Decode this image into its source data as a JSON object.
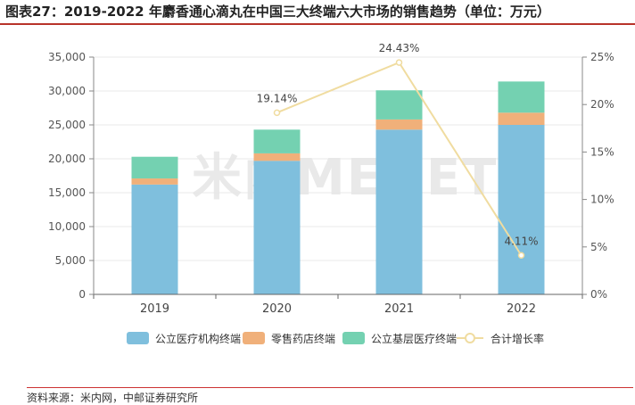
{
  "title": "图表27：2019-2022 年麝香通心滴丸在中国三大终端六大市场的销售趋势（单位：万元）",
  "source": "资料来源：米内网，中邮证券研究所",
  "watermark": "米内MENET",
  "colors": {
    "title_rule": "#b8332a",
    "public_hospital": "#7fbfdd",
    "retail_pharmacy": "#f0b07a",
    "primary_care": "#74d1b1",
    "growth_line": "#f0dca0",
    "axis": "#555555",
    "grid": "#e8e8e8"
  },
  "chart_data": {
    "type": "bar",
    "stacked": true,
    "categories": [
      "2019",
      "2020",
      "2021",
      "2022"
    ],
    "series": [
      {
        "name": "公立医疗机构终端",
        "axis": "left",
        "values": [
          16200,
          19700,
          24300,
          25000
        ]
      },
      {
        "name": "零售药店终端",
        "axis": "left",
        "values": [
          900,
          1100,
          1500,
          1800
        ]
      },
      {
        "name": "公立基层医疗终端",
        "axis": "left",
        "values": [
          3200,
          3500,
          4300,
          4600
        ]
      },
      {
        "name": "合计增长率",
        "type": "line",
        "axis": "right",
        "values": [
          null,
          19.14,
          24.43,
          4.11
        ]
      }
    ],
    "rate_labels": [
      "",
      "19.14%",
      "24.43%",
      "4.11%"
    ],
    "y_left": {
      "min": 0,
      "max": 35000,
      "ticks": [
        "0",
        "5,000",
        "10,000",
        "15,000",
        "20,000",
        "25,000",
        "30,000",
        "35,000"
      ]
    },
    "y_right": {
      "min": 0,
      "max": 25,
      "ticks": [
        "0%",
        "5%",
        "10%",
        "15%",
        "20%",
        "25%"
      ]
    },
    "grid": true,
    "legend_position": "bottom"
  }
}
